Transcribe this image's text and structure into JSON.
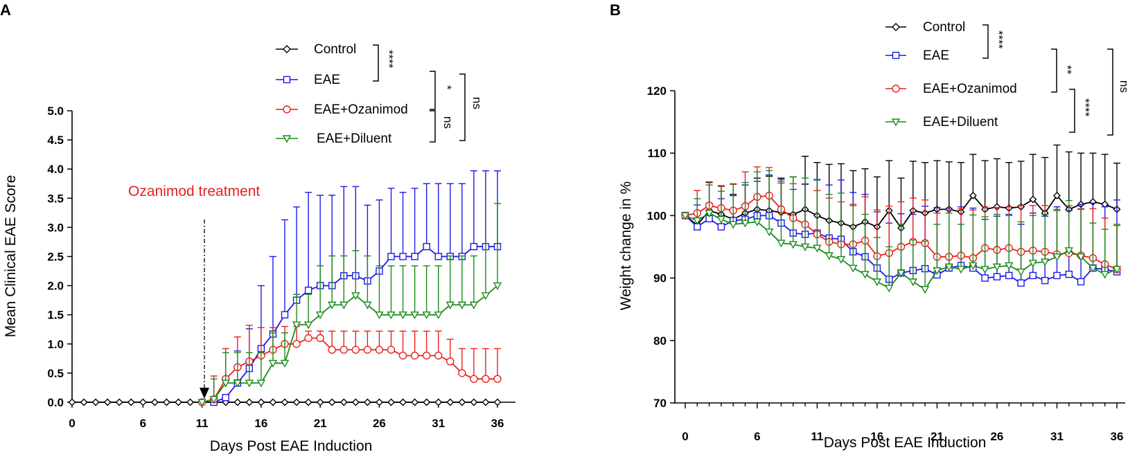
{
  "chart_data": [
    {
      "type": "line",
      "panel_label": "A",
      "xlabel": "Days Post EAE Induction",
      "ylabel": "Mean Clinical EAE Score",
      "xlim": [
        0,
        36
      ],
      "ylim": [
        0,
        5
      ],
      "x_ticks": [
        "0",
        "6",
        "11",
        "16",
        "21",
        "26",
        "31",
        "36"
      ],
      "y_ticks": [
        "0.0",
        "0.5",
        "1.0",
        "1.5",
        "2.0",
        "2.5",
        "3.0",
        "3.5",
        "4.0",
        "4.5",
        "5.0"
      ],
      "annotation": "Ozanimod treatment",
      "treatment_day": 12,
      "series": [
        {
          "name": "Control",
          "color": "#000000",
          "marker": "diamond",
          "x": [
            0,
            1,
            2,
            3,
            4,
            5,
            6,
            7,
            8,
            9,
            10,
            11,
            12,
            13,
            14,
            15,
            16,
            17,
            18,
            19,
            20,
            21,
            22,
            23,
            24,
            25,
            26,
            27,
            28,
            29,
            30,
            31,
            32,
            33,
            34,
            35,
            36
          ],
          "values": [
            0,
            0,
            0,
            0,
            0,
            0,
            0,
            0,
            0,
            0,
            0,
            0,
            0,
            0,
            0,
            0,
            0,
            0,
            0,
            0,
            0,
            0,
            0,
            0,
            0,
            0,
            0,
            0,
            0,
            0,
            0,
            0,
            0,
            0,
            0,
            0,
            0
          ],
          "errors": [
            0,
            0,
            0,
            0,
            0,
            0,
            0,
            0,
            0,
            0,
            0,
            0,
            0,
            0,
            0,
            0,
            0,
            0,
            0,
            0,
            0,
            0,
            0,
            0,
            0,
            0,
            0,
            0,
            0,
            0,
            0,
            0,
            0,
            0,
            0,
            0,
            0
          ]
        },
        {
          "name": "EAE",
          "color": "#1a1ae6",
          "marker": "square",
          "x": [
            12,
            13,
            14,
            15,
            16,
            17,
            18,
            19,
            20,
            21,
            22,
            23,
            24,
            25,
            26,
            27,
            28,
            29,
            30,
            31,
            32,
            33,
            34,
            35,
            36
          ],
          "values": [
            0,
            0.08,
            0.33,
            0.58,
            0.92,
            1.17,
            1.5,
            1.75,
            1.92,
            2.0,
            2.0,
            2.17,
            2.17,
            2.08,
            2.25,
            2.5,
            2.5,
            2.5,
            2.67,
            2.5,
            2.5,
            2.5,
            2.67,
            2.67,
            2.67
          ],
          "errors": [
            0,
            0,
            0.55,
            0.68,
            1.08,
            1.33,
            1.63,
            1.6,
            1.68,
            1.55,
            1.55,
            1.53,
            1.53,
            1.3,
            1.22,
            1.17,
            1.1,
            1.17,
            1.08,
            1.25,
            1.25,
            1.25,
            1.3,
            1.3,
            1.3
          ]
        },
        {
          "name": "EAE+Ozanimod",
          "color": "#e8201f",
          "marker": "circle",
          "x": [
            11,
            12,
            13,
            14,
            15,
            16,
            17,
            18,
            19,
            20,
            21,
            22,
            23,
            24,
            25,
            26,
            27,
            28,
            29,
            30,
            31,
            32,
            33,
            34,
            35,
            36
          ],
          "values": [
            0,
            0.05,
            0.4,
            0.6,
            0.7,
            0.8,
            0.9,
            1.0,
            1.0,
            1.1,
            1.1,
            0.9,
            0.9,
            0.9,
            0.9,
            0.9,
            0.9,
            0.8,
            0.8,
            0.8,
            0.8,
            0.7,
            0.5,
            0.4,
            0.4,
            0.4
          ],
          "errors": [
            0,
            0.4,
            0.52,
            0.52,
            0.62,
            0.48,
            0.38,
            0.3,
            0.3,
            0.12,
            0.12,
            0.32,
            0.32,
            0.32,
            0.32,
            0.32,
            0.32,
            0.42,
            0.42,
            0.42,
            0.42,
            0.38,
            0.42,
            0.52,
            0.52,
            0.52
          ]
        },
        {
          "name": "EAE+Diluent",
          "color": "#1a8a1a",
          "marker": "triangle-down",
          "x": [
            11,
            12,
            13,
            14,
            15,
            16,
            17,
            18,
            19,
            20,
            21,
            22,
            23,
            24,
            25,
            26,
            27,
            28,
            29,
            30,
            31,
            32,
            33,
            34,
            35,
            36
          ],
          "values": [
            0,
            0.05,
            0.33,
            0.33,
            0.33,
            0.33,
            0.67,
            0.67,
            1.33,
            1.33,
            1.5,
            1.67,
            1.67,
            1.83,
            1.67,
            1.5,
            1.5,
            1.5,
            1.5,
            1.5,
            1.5,
            1.67,
            1.67,
            1.67,
            1.83,
            2.0
          ],
          "errors": [
            0,
            0.35,
            0.52,
            0.52,
            0.52,
            0.52,
            0.52,
            0.52,
            0.52,
            0.52,
            0.84,
            0.84,
            0.84,
            0.77,
            0.84,
            0.84,
            0.84,
            0.84,
            0.84,
            0.84,
            0.84,
            0.84,
            0.84,
            0.84,
            0.89,
            1.41
          ]
        }
      ],
      "significance": [
        {
          "label": "****",
          "between": "Control vs EAE"
        },
        {
          "label": "*",
          "between": "EAE vs EAE+Ozanimod"
        },
        {
          "label": "ns",
          "between": "EAE+Ozanimod vs EAE+Diluent"
        },
        {
          "label": "ns",
          "between": "EAE vs EAE+Diluent"
        }
      ]
    },
    {
      "type": "line",
      "panel_label": "B",
      "xlabel": "Days Post EAE Induction",
      "ylabel": "Weight change in %",
      "xlim": [
        0,
        36
      ],
      "ylim": [
        70,
        120
      ],
      "x_ticks": [
        "0",
        "6",
        "11",
        "16",
        "21",
        "26",
        "31",
        "36"
      ],
      "y_ticks": [
        "70",
        "80",
        "90",
        "100",
        "110",
        "120"
      ],
      "series": [
        {
          "name": "Control",
          "color": "#000000",
          "marker": "diamond",
          "x": [
            0,
            1,
            2,
            3,
            4,
            5,
            6,
            7,
            8,
            9,
            10,
            11,
            12,
            13,
            14,
            15,
            16,
            17,
            18,
            19,
            20,
            21,
            22,
            23,
            24,
            25,
            26,
            27,
            28,
            29,
            30,
            31,
            32,
            33,
            34,
            35,
            36
          ],
          "values": [
            100,
            98.5,
            100.8,
            100.2,
            99.4,
            100.4,
            101,
            100.8,
            100.5,
            100.2,
            101,
            100,
            99.2,
            98.8,
            98.2,
            99,
            98.2,
            100.8,
            98,
            100.8,
            100.4,
            101,
            101,
            100.6,
            103.2,
            101,
            101.4,
            101.2,
            101.4,
            102.6,
            100.4,
            103.2,
            101,
            101.8,
            102.2,
            101.8,
            101
          ],
          "errors": [
            0,
            1,
            4.5,
            4.5,
            4,
            4.5,
            5,
            5.5,
            5.5,
            6,
            8.5,
            8.5,
            9,
            9.5,
            9,
            8.5,
            8,
            8,
            8,
            7.9,
            8.1,
            7.8,
            7.6,
            7.9,
            6.6,
            7.8,
            7.7,
            7.3,
            7.3,
            7.2,
            8.9,
            8.1,
            9.2,
            8.2,
            7.8,
            8,
            7.4
          ]
        },
        {
          "name": "EAE",
          "color": "#1a1ae6",
          "marker": "square",
          "x": [
            0,
            1,
            2,
            3,
            4,
            5,
            6,
            7,
            8,
            9,
            10,
            11,
            12,
            13,
            14,
            15,
            16,
            17,
            18,
            19,
            20,
            21,
            22,
            23,
            24,
            25,
            26,
            27,
            28,
            29,
            30,
            31,
            32,
            33,
            34,
            35,
            36
          ],
          "values": [
            100,
            98.2,
            99.5,
            98.2,
            99.2,
            99.4,
            100,
            100,
            98.8,
            97.2,
            97,
            97.2,
            96.4,
            96.2,
            94.2,
            93.4,
            91.6,
            89.8,
            90.8,
            91.2,
            91.5,
            90.5,
            91.6,
            92,
            91.6,
            90,
            90.2,
            90.4,
            89.2,
            90.4,
            89.6,
            90.4,
            90.6,
            89.4,
            91.6,
            91.4,
            91
          ],
          "errors": [
            0,
            3.5,
            2.5,
            4.5,
            4,
            5.5,
            5.5,
            6.5,
            7,
            7,
            8,
            8.5,
            8.5,
            9.5,
            9.5,
            10,
            9,
            9,
            9.5,
            9,
            10,
            10.8,
            9.6,
            9.4,
            9.6,
            9.4,
            9.7,
            9.8,
            9.4,
            10,
            10.3,
            11,
            10.2,
            12.4,
            10.4,
            10,
            11.5
          ]
        },
        {
          "name": "EAE+Ozanimod",
          "color": "#e8201f",
          "marker": "circle",
          "x": [
            0,
            1,
            2,
            3,
            4,
            5,
            6,
            7,
            8,
            9,
            10,
            11,
            12,
            13,
            14,
            15,
            16,
            17,
            18,
            19,
            20,
            21,
            22,
            23,
            24,
            25,
            26,
            27,
            28,
            29,
            30,
            31,
            32,
            33,
            34,
            35,
            36
          ],
          "values": [
            100,
            100.4,
            101.6,
            101.2,
            100.8,
            101.5,
            103,
            103.2,
            101,
            99.6,
            98.6,
            97,
            95.8,
            95.4,
            95.4,
            96,
            93.5,
            94,
            95,
            95.8,
            95.6,
            93.4,
            93.4,
            93.6,
            93.2,
            94.8,
            94.5,
            94.8,
            94.2,
            94.4,
            94.2,
            93.8,
            94,
            93.6,
            93.2,
            92.2,
            91.4
          ],
          "errors": [
            0,
            3.6,
            3.8,
            3.6,
            4.2,
            5.5,
            4.8,
            4.5,
            4.5,
            5.5,
            6.5,
            7,
            7,
            6.8,
            6.4,
            7,
            7.4,
            7.5,
            7.2,
            7,
            6.9,
            7,
            7.5,
            7.5,
            7.7,
            6.6,
            6.8,
            6.6,
            7.4,
            7.2,
            7.4,
            7.2,
            7.6,
            7.5,
            7.9,
            7.4,
            7
          ]
        },
        {
          "name": "EAE+Diluent",
          "color": "#1a8a1a",
          "marker": "triangle-down",
          "x": [
            0,
            1,
            2,
            3,
            4,
            5,
            6,
            7,
            8,
            9,
            10,
            11,
            12,
            13,
            14,
            15,
            16,
            17,
            18,
            19,
            20,
            21,
            22,
            23,
            24,
            25,
            26,
            27,
            28,
            29,
            30,
            31,
            32,
            33,
            34,
            35,
            36
          ],
          "values": [
            100,
            99.2,
            100.4,
            99.4,
            98.6,
            98.8,
            99,
            97.4,
            95.6,
            95.4,
            95,
            94.8,
            93.6,
            93,
            91.6,
            90.6,
            89.4,
            88.4,
            90.8,
            89.4,
            88.2,
            91.2,
            91.8,
            91.4,
            92,
            91.4,
            91.8,
            92,
            91,
            92.4,
            92.6,
            93.4,
            94.4,
            93.4,
            91.6,
            90.6,
            91.4
          ],
          "errors": [
            0,
            3.5,
            4.5,
            4.5,
            6.5,
            6.5,
            8,
            9.8,
            9.6,
            10.8,
            11,
            11,
            9.8,
            10.6,
            10,
            9.6,
            7.1,
            6.6,
            7.8,
            6.7,
            7.7,
            7.4,
            8.6,
            7.2,
            8.1,
            8.4,
            8.4,
            8,
            8,
            7.6,
            7.6,
            7.4,
            8,
            7.6,
            7.2,
            7.2,
            7.2
          ]
        }
      ],
      "significance": [
        {
          "label": "****",
          "between": "Control vs EAE"
        },
        {
          "label": "**",
          "between": "EAE vs EAE+Ozanimod"
        },
        {
          "label": "****",
          "between": "EAE+Ozanimod vs EAE+Diluent"
        },
        {
          "label": "ns",
          "between": "EAE vs EAE+Diluent"
        }
      ]
    }
  ]
}
